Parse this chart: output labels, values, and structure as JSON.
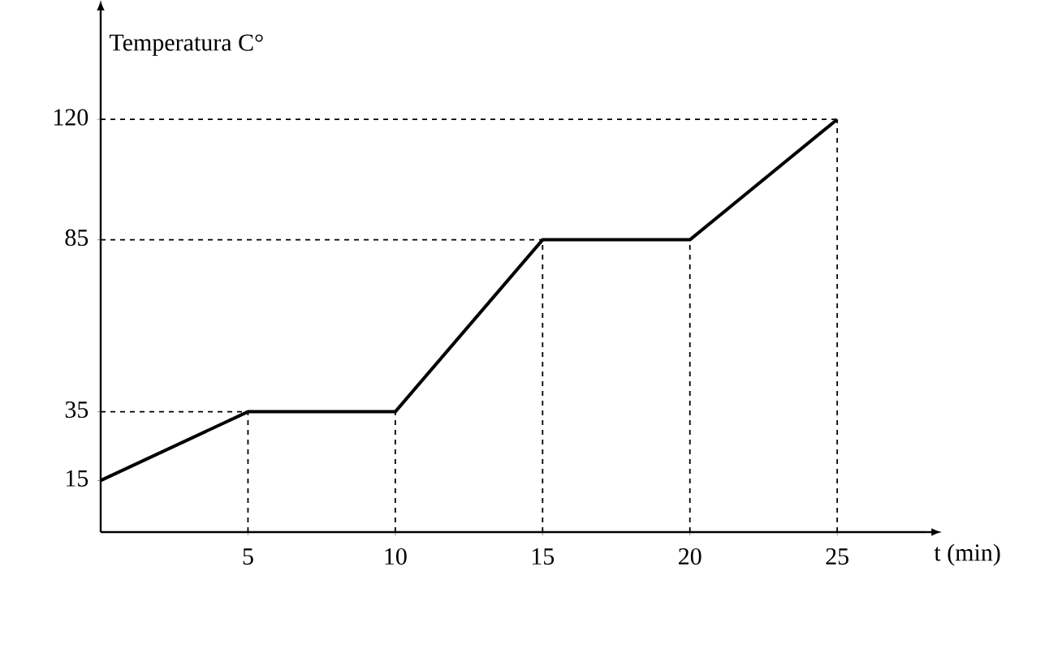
{
  "chart_data": {
    "type": "line",
    "xlabel": "t (min)",
    "ylabel": "Temperatura C°",
    "x": [
      0,
      5,
      10,
      15,
      20,
      25
    ],
    "series": [
      {
        "color": "#000000",
        "values": [
          15,
          35,
          35,
          85,
          85,
          120
        ]
      }
    ],
    "xlim": [
      0,
      28
    ],
    "ylim": [
      0,
      150
    ],
    "xticks": [
      5,
      10,
      15,
      20,
      25
    ],
    "yticks": [
      15,
      35,
      85,
      120
    ],
    "grid": false,
    "marker": "none",
    "line_style": "solid",
    "ref_lines": [
      {
        "axis": "y",
        "value": 35,
        "line_style": "dashed"
      },
      {
        "axis": "y",
        "value": 85,
        "line_style": "dashed"
      },
      {
        "axis": "y",
        "value": 120,
        "line_style": "dashed"
      },
      {
        "axis": "x",
        "value": 5,
        "line_style": "dashed"
      },
      {
        "axis": "x",
        "value": 10,
        "line_style": "dashed"
      },
      {
        "axis": "x",
        "value": 15,
        "line_style": "dashed"
      },
      {
        "axis": "x",
        "value": 20,
        "line_style": "dashed"
      },
      {
        "axis": "x",
        "value": 25,
        "line_style": "dashed"
      }
    ]
  }
}
